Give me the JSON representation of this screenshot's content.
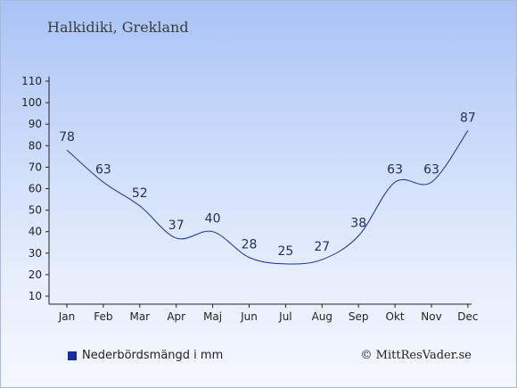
{
  "chart_data": {
    "type": "line",
    "title": "Halkidiki, Grekland",
    "categories": [
      "Jan",
      "Feb",
      "Mar",
      "Apr",
      "Maj",
      "Jun",
      "Jul",
      "Aug",
      "Sep",
      "Okt",
      "Nov",
      "Dec"
    ],
    "series": [
      {
        "name": "Nederbördsmängd i mm",
        "values": [
          78,
          63,
          52,
          37,
          40,
          28,
          25,
          27,
          38,
          63,
          63,
          87
        ],
        "color": "#1a2aa0"
      }
    ],
    "yticks": [
      10,
      20,
      30,
      40,
      50,
      60,
      70,
      80,
      90,
      100,
      110
    ],
    "ylim": [
      10,
      110
    ],
    "xlabel": "",
    "ylabel": "",
    "grid": false,
    "legend": "bottom-left"
  },
  "credit": "© MittResVader.se"
}
